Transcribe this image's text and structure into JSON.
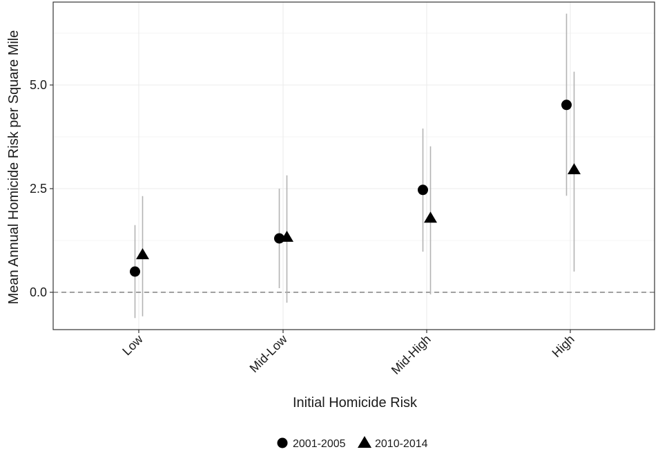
{
  "chart_data": {
    "type": "scatter",
    "title": "",
    "xlabel": "Initial Homicide Risk",
    "ylabel": "Mean Annual Homicide Risk per Square Mile",
    "categories": [
      "Low",
      "Mid-Low",
      "Mid-High",
      "High"
    ],
    "ylim": [
      -0.9,
      7.0
    ],
    "yticks": [
      0.0,
      2.5,
      5.0
    ],
    "ytick_labels": [
      "0.0",
      "2.5",
      "5.0"
    ],
    "reference_line": 0,
    "grid": true,
    "legend_position": "bottom",
    "series": [
      {
        "name": "2001-2005",
        "marker": "circle",
        "values": [
          0.5,
          1.3,
          2.47,
          4.52
        ],
        "lower": [
          -0.62,
          0.1,
          0.98,
          2.33
        ],
        "upper": [
          1.62,
          2.5,
          3.95,
          6.72
        ]
      },
      {
        "name": "2010-2014",
        "marker": "triangle",
        "values": [
          0.9,
          1.32,
          1.78,
          2.95
        ],
        "lower": [
          -0.58,
          -0.25,
          -0.05,
          0.5
        ],
        "upper": [
          2.32,
          2.82,
          3.52,
          5.32
        ]
      }
    ],
    "colors": {
      "marker": "#000000",
      "errorbar": "#b3b3b3",
      "grid": "#ebebeb",
      "border": "#333333",
      "refline": "#808080"
    }
  }
}
